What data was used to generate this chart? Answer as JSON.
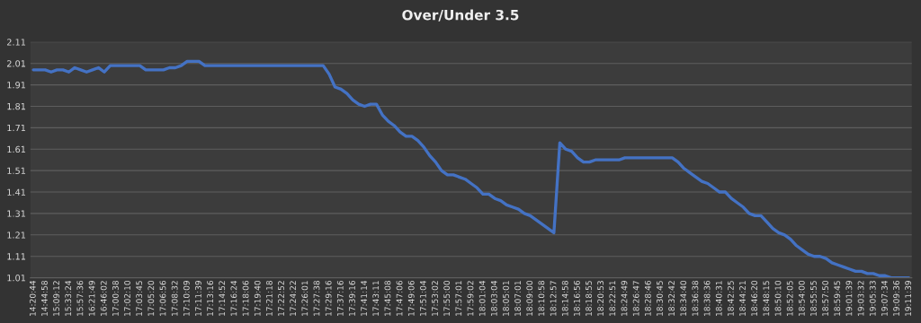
{
  "chart_data": {
    "type": "line",
    "title": "Over/Under 3.5",
    "categories": [
      "14:20:44",
      null,
      "14:44:58",
      null,
      "15:09:12",
      null,
      "15:33:24",
      null,
      "15:57:36",
      null,
      "16:21:49",
      null,
      "16:46:02",
      null,
      "17:00:38",
      null,
      "17:02:10",
      null,
      "17:03:45",
      null,
      "17:05:20",
      null,
      "17:06:56",
      null,
      "17:08:32",
      null,
      "17:10:09",
      null,
      "17:11:39",
      null,
      "17:13:16",
      null,
      "17:14:52",
      null,
      "17:16:24",
      null,
      "17:18:06",
      null,
      "17:19:40",
      null,
      "17:21:18",
      null,
      "17:22:52",
      null,
      "17:24:22",
      null,
      "17:26:01",
      null,
      "17:27:38",
      null,
      "17:29:16",
      null,
      "17:37:16",
      null,
      "17:39:16",
      null,
      "17:41:14",
      null,
      "17:43:11",
      null,
      "17:45:08",
      null,
      "17:47:06",
      null,
      "17:49:06",
      null,
      "17:51:04",
      null,
      "17:53:02",
      null,
      "17:55:00",
      null,
      "17:57:01",
      null,
      "17:59:02",
      null,
      "18:01:04",
      null,
      "18:03:04",
      null,
      "18:05:01",
      null,
      "18:07:01",
      null,
      "18:09:00",
      null,
      "18:10:58",
      null,
      "18:12:57",
      null,
      "18:14:58",
      null,
      "18:16:56",
      null,
      "18:18:55",
      null,
      "18:20:53",
      null,
      "18:22:51",
      null,
      "18:24:49",
      null,
      "18:26:47",
      null,
      "18:28:46",
      null,
      "18:30:45",
      null,
      "18:32:42",
      null,
      "18:34:40",
      null,
      "18:36:38",
      null,
      "18:38:36",
      null,
      "18:40:31",
      null,
      "18:42:25",
      null,
      "18:44:21",
      null,
      "18:46:20",
      null,
      "18:48:15",
      null,
      "18:50:10",
      null,
      "18:52:05",
      null,
      "18:54:00",
      null,
      "18:55:55",
      null,
      "18:57:50",
      null,
      "18:59:45",
      null,
      "19:01:39",
      null,
      "19:03:32",
      null,
      "19:05:33",
      null,
      "19:07:34",
      null,
      "19:09:36",
      null,
      "19:11:39"
    ],
    "series": [
      {
        "color": "#4472c4",
        "values": [
          1.98,
          1.98,
          1.98,
          1.97,
          1.98,
          1.98,
          1.97,
          1.99,
          1.98,
          1.97,
          1.98,
          1.99,
          1.97,
          2.0,
          2.0,
          2.0,
          2.0,
          2.0,
          2.0,
          1.98,
          1.98,
          1.98,
          1.98,
          1.99,
          1.99,
          2.0,
          2.02,
          2.02,
          2.02,
          2.0,
          2.0,
          2.0,
          2.0,
          2.0,
          2.0,
          2.0,
          2.0,
          2.0,
          2.0,
          2.0,
          2.0,
          2.0,
          2.0,
          2.0,
          2.0,
          2.0,
          2.0,
          2.0,
          2.0,
          2.0,
          1.96,
          1.9,
          1.89,
          1.87,
          1.84,
          1.82,
          1.81,
          1.82,
          1.82,
          1.77,
          1.74,
          1.72,
          1.69,
          1.67,
          1.67,
          1.65,
          1.62,
          1.58,
          1.55,
          1.51,
          1.49,
          1.49,
          1.48,
          1.47,
          1.45,
          1.43,
          1.4,
          1.4,
          1.38,
          1.37,
          1.35,
          1.34,
          1.33,
          1.31,
          1.3,
          1.28,
          1.26,
          1.24,
          1.22,
          1.64,
          1.61,
          1.6,
          1.57,
          1.55,
          1.55,
          1.56,
          1.56,
          1.56,
          1.56,
          1.56,
          1.57,
          1.57,
          1.57,
          1.57,
          1.57,
          1.57,
          1.57,
          1.57,
          1.57,
          1.55,
          1.52,
          1.5,
          1.48,
          1.46,
          1.45,
          1.43,
          1.41,
          1.41,
          1.38,
          1.36,
          1.34,
          1.31,
          1.3,
          1.3,
          1.27,
          1.24,
          1.22,
          1.21,
          1.19,
          1.16,
          1.14,
          1.12,
          1.11,
          1.11,
          1.1,
          1.08,
          1.07,
          1.06,
          1.05,
          1.04,
          1.04,
          1.03,
          1.03,
          1.02,
          1.02,
          1.01,
          1.01,
          1.01,
          1.01
        ]
      }
    ],
    "ylim": [
      1.01,
      2.11
    ],
    "yticks": [
      1.01,
      1.11,
      1.21,
      1.31,
      1.41,
      1.51,
      1.61,
      1.71,
      1.81,
      1.91,
      2.01,
      2.11
    ],
    "grid": "y",
    "marker": "none",
    "line_style": "solid"
  }
}
